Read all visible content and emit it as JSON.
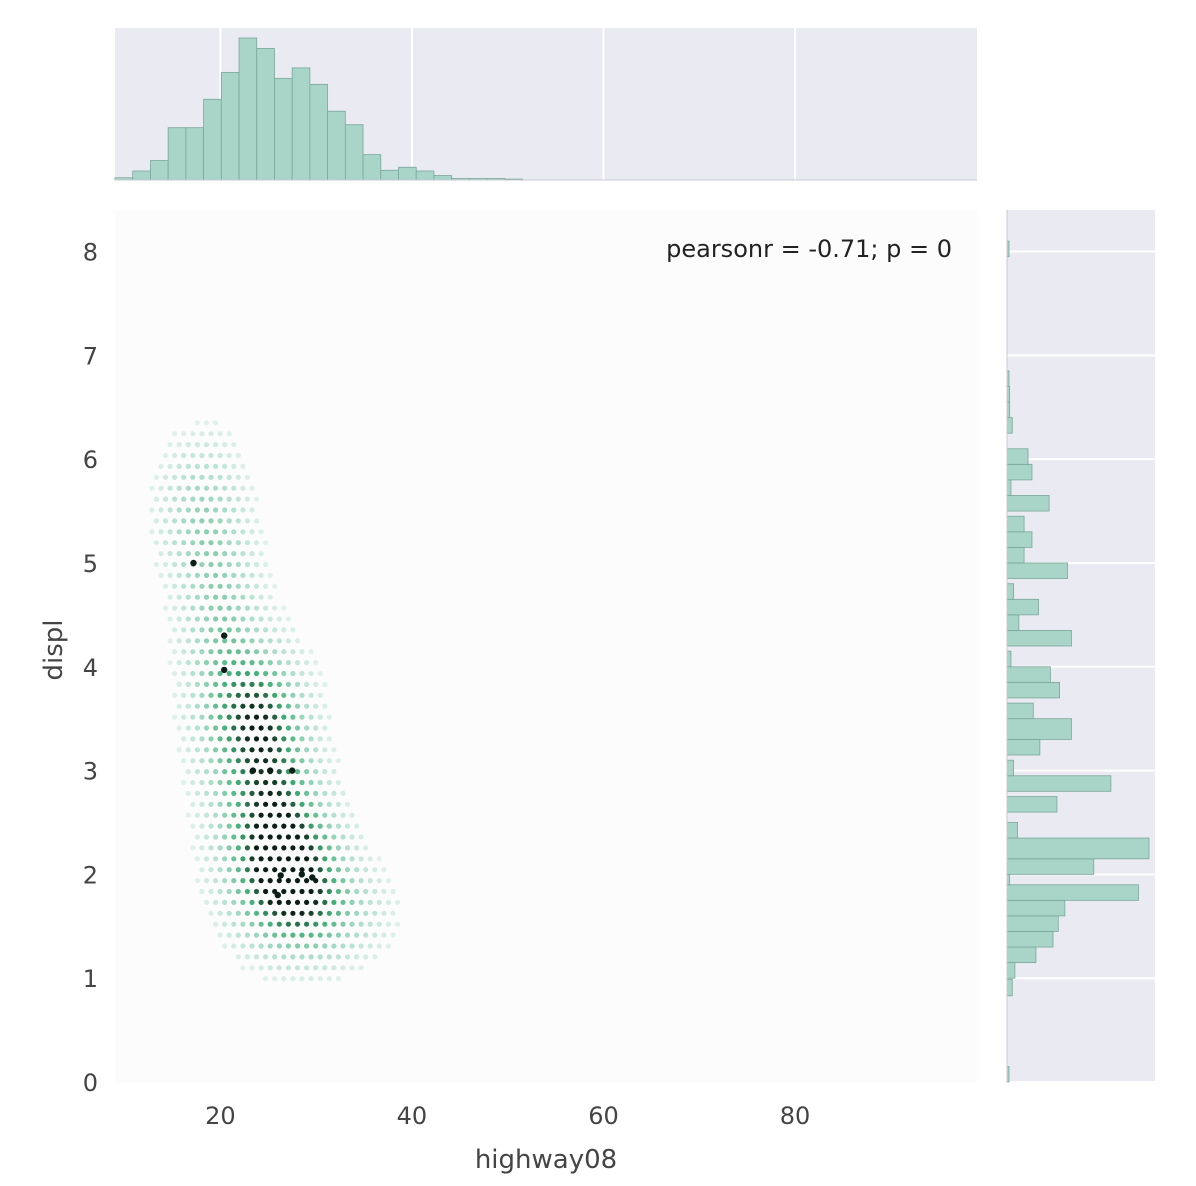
{
  "chart_data": {
    "type": "hexbin",
    "xlabel": "highway08",
    "ylabel": "displ",
    "annotation": "pearsonr = -0.71; p = 0",
    "xlim": [
      9,
      99
    ],
    "ylim": [
      0,
      8.4
    ],
    "xticks": [
      20,
      40,
      60,
      80
    ],
    "yticks": [
      0,
      1,
      2,
      3,
      4,
      5,
      6,
      7,
      8
    ],
    "grid": true,
    "colors": {
      "background": "#eaeaf2",
      "bar_fill": "#a8d5c8",
      "bar_edge": "#7aa79a",
      "density_light": "#f4faf8",
      "density_mid": "#41ae76",
      "density_dark": "#0b1f17"
    },
    "x_marginal_hist": {
      "bin_edges": [
        9,
        10.85,
        12.7,
        14.55,
        16.4,
        18.25,
        20.1,
        21.95,
        23.8,
        25.65,
        27.5,
        29.35,
        31.2,
        33.05,
        34.9,
        36.75,
        38.6,
        40.45,
        42.3,
        44.15,
        46.0,
        47.85,
        49.7,
        51.55
      ],
      "heights": [
        1.5,
        6,
        13,
        35,
        35,
        54,
        72,
        95,
        88,
        68,
        75,
        64,
        46,
        37,
        17,
        6.5,
        8.5,
        6,
        3,
        1,
        1,
        1,
        0.6
      ]
    },
    "y_marginal_hist": {
      "bins": [
        {
          "y0": 0.0,
          "y1": 0.15,
          "count": 1
        },
        {
          "y0": 0.83,
          "y1": 0.99,
          "count": 4
        },
        {
          "y0": 1.0,
          "y1": 1.15,
          "count": 6
        },
        {
          "y0": 1.15,
          "y1": 1.3,
          "count": 22
        },
        {
          "y0": 1.3,
          "y1": 1.45,
          "count": 35
        },
        {
          "y0": 1.45,
          "y1": 1.6,
          "count": 39
        },
        {
          "y0": 1.6,
          "y1": 1.75,
          "count": 44
        },
        {
          "y0": 1.75,
          "y1": 1.9,
          "count": 100
        },
        {
          "y0": 1.9,
          "y1": 2.0,
          "count": 2
        },
        {
          "y0": 2.0,
          "y1": 2.15,
          "count": 66
        },
        {
          "y0": 2.15,
          "y1": 2.35,
          "count": 108
        },
        {
          "y0": 2.35,
          "y1": 2.5,
          "count": 8
        },
        {
          "y0": 2.6,
          "y1": 2.75,
          "count": 38
        },
        {
          "y0": 2.8,
          "y1": 2.95,
          "count": 79
        },
        {
          "y0": 2.95,
          "y1": 3.1,
          "count": 5
        },
        {
          "y0": 3.15,
          "y1": 3.3,
          "count": 25
        },
        {
          "y0": 3.3,
          "y1": 3.5,
          "count": 49
        },
        {
          "y0": 3.5,
          "y1": 3.65,
          "count": 20
        },
        {
          "y0": 3.7,
          "y1": 3.85,
          "count": 40
        },
        {
          "y0": 3.85,
          "y1": 4.0,
          "count": 33
        },
        {
          "y0": 4.0,
          "y1": 4.15,
          "count": 3
        },
        {
          "y0": 4.2,
          "y1": 4.35,
          "count": 49
        },
        {
          "y0": 4.35,
          "y1": 4.5,
          "count": 9
        },
        {
          "y0": 4.5,
          "y1": 4.65,
          "count": 24
        },
        {
          "y0": 4.65,
          "y1": 4.8,
          "count": 5
        },
        {
          "y0": 4.85,
          "y1": 5.0,
          "count": 46
        },
        {
          "y0": 5.0,
          "y1": 5.15,
          "count": 13
        },
        {
          "y0": 5.15,
          "y1": 5.3,
          "count": 19
        },
        {
          "y0": 5.3,
          "y1": 5.45,
          "count": 13
        },
        {
          "y0": 5.5,
          "y1": 5.65,
          "count": 32
        },
        {
          "y0": 5.65,
          "y1": 5.8,
          "count": 3
        },
        {
          "y0": 5.8,
          "y1": 5.95,
          "count": 19
        },
        {
          "y0": 5.95,
          "y1": 6.1,
          "count": 16
        },
        {
          "y0": 6.25,
          "y1": 6.4,
          "count": 4
        },
        {
          "y0": 6.4,
          "y1": 6.55,
          "count": 2
        },
        {
          "y0": 6.55,
          "y1": 6.7,
          "count": 2
        },
        {
          "y0": 6.7,
          "y1": 6.85,
          "count": 1
        },
        {
          "y0": 7.95,
          "y1": 8.1,
          "count": 1
        }
      ]
    },
    "hexbin_clusters": [
      {
        "x": 20,
        "y": 4.3,
        "sx": 3,
        "sy": 1.0,
        "w": 0.55
      },
      {
        "x": 25,
        "y": 3.0,
        "sx": 3.5,
        "sy": 0.7,
        "w": 0.8
      },
      {
        "x": 27,
        "y": 2.1,
        "sx": 4,
        "sy": 0.45,
        "w": 1.0
      },
      {
        "x": 30,
        "y": 1.6,
        "sx": 5,
        "sy": 0.35,
        "w": 0.55
      },
      {
        "x": 17,
        "y": 5.5,
        "sx": 3,
        "sy": 0.5,
        "w": 0.35
      },
      {
        "x": 24,
        "y": 3.6,
        "sx": 3,
        "sy": 0.4,
        "w": 0.4
      }
    ],
    "hexbin_hotspots": [
      {
        "x": 17.2,
        "y": 5.0
      },
      {
        "x": 20.4,
        "y": 4.3
      },
      {
        "x": 20.4,
        "y": 3.97
      },
      {
        "x": 23.4,
        "y": 3.0
      },
      {
        "x": 25.2,
        "y": 3.0
      },
      {
        "x": 27.5,
        "y": 3.0
      },
      {
        "x": 26.3,
        "y": 1.99
      },
      {
        "x": 28.5,
        "y": 2.0
      },
      {
        "x": 29.6,
        "y": 1.97
      },
      {
        "x": 26.0,
        "y": 1.8
      }
    ]
  }
}
